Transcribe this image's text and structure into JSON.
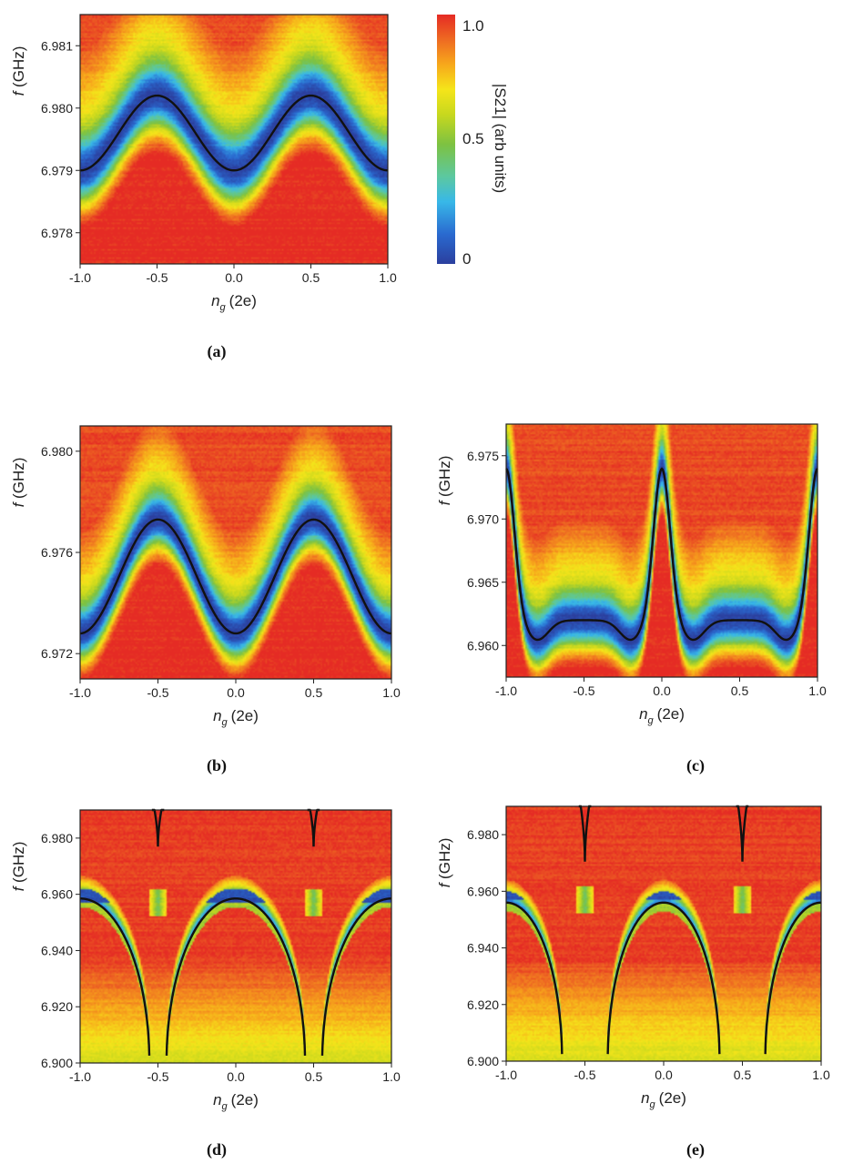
{
  "figure": {
    "colorbar": {
      "label": "|S21| (arb units)",
      "ticks": [
        "1.0",
        "0.5",
        "0"
      ],
      "tick_values": [
        1.0,
        0.5,
        0.0
      ],
      "colors": [
        "#2b3f9e",
        "#2a6ad0",
        "#38b8e8",
        "#5cc8a0",
        "#7dc241",
        "#c8d81e",
        "#f5e51a",
        "#f7a81b",
        "#ee6a22",
        "#e52b24"
      ]
    }
  },
  "chart_data": [
    {
      "id": "a",
      "type": "heatmap",
      "caption": "(a)",
      "xlabel_var": "n",
      "xlabel_sub": "g",
      "xlabel_unit": "(2e)",
      "ylabel_var": "f",
      "ylabel_unit": "(GHz)",
      "xlim": [
        -1.0,
        1.0
      ],
      "ylim": [
        6.9775,
        6.9815
      ],
      "xticks": [
        -1.0,
        -0.5,
        0.0,
        0.5,
        1.0
      ],
      "xtick_labels": [
        "-1.0",
        "-0.5",
        "0.0",
        "0.5",
        "1.0"
      ],
      "yticks": [
        6.978,
        6.979,
        6.98,
        6.981
      ],
      "ytick_labels": [
        "6.978",
        "6.979",
        "6.980",
        "6.981"
      ],
      "curve": {
        "kind": "cosine",
        "f_min": 6.979,
        "f_max": 6.9802
      },
      "resonance_width": 0.00045
    },
    {
      "id": "b",
      "type": "heatmap",
      "caption": "(b)",
      "xlabel_var": "n",
      "xlabel_sub": "g",
      "xlabel_unit": "(2e)",
      "ylabel_var": "f",
      "ylabel_unit": "(GHz)",
      "xlim": [
        -1.0,
        1.0
      ],
      "ylim": [
        6.971,
        6.981
      ],
      "xticks": [
        -1.0,
        -0.5,
        0.0,
        0.5,
        1.0
      ],
      "xtick_labels": [
        "-1.0",
        "-0.5",
        "0.0",
        "0.5",
        "1.0"
      ],
      "yticks": [
        6.972,
        6.976,
        6.98
      ],
      "ytick_labels": [
        "6.972",
        "6.976",
        "6.980"
      ],
      "curve": {
        "kind": "cosine",
        "f_min": 6.9728,
        "f_max": 6.9773
      },
      "resonance_width": 0.0009
    },
    {
      "id": "c",
      "type": "heatmap",
      "caption": "(c)",
      "xlabel_var": "n",
      "xlabel_sub": "g",
      "xlabel_unit": "(2e)",
      "ylabel_var": "f",
      "ylabel_unit": "(GHz)",
      "xlim": [
        -1.0,
        1.0
      ],
      "ylim": [
        6.9575,
        6.9775
      ],
      "xticks": [
        -1.0,
        -0.5,
        0.0,
        0.5,
        1.0
      ],
      "xtick_labels": [
        "-1.0",
        "-0.5",
        "0.0",
        "0.5",
        "1.0"
      ],
      "yticks": [
        6.96,
        6.965,
        6.97,
        6.975
      ],
      "ytick_labels": [
        "6.960",
        "6.965",
        "6.970",
        "6.975"
      ],
      "curve": {
        "kind": "peaked",
        "base": 6.962,
        "dip": 1.3,
        "peak": 6.974
      },
      "resonance_width": 0.0018
    },
    {
      "id": "d",
      "type": "heatmap",
      "caption": "(d)",
      "xlabel_var": "n",
      "xlabel_sub": "g",
      "xlabel_unit": "(2e)",
      "ylabel_var": "f",
      "ylabel_unit": "(GHz)",
      "xlim": [
        -1.0,
        1.0
      ],
      "ylim": [
        6.9,
        6.99
      ],
      "xticks": [
        -1.0,
        -0.5,
        0.0,
        0.5,
        1.0
      ],
      "xtick_labels": [
        "-1.0",
        "-0.5",
        "0.0",
        "0.5",
        "1.0"
      ],
      "yticks": [
        6.9,
        6.92,
        6.94,
        6.96,
        6.98
      ],
      "ytick_labels": [
        "6.900",
        "6.920",
        "6.940",
        "6.960",
        "6.980"
      ],
      "curve": {
        "kind": "arches",
        "top": 6.9585,
        "bottom_x": 0.445,
        "upper_min": 6.977
      },
      "resonance_width": 0.006
    },
    {
      "id": "e",
      "type": "heatmap",
      "caption": "(e)",
      "xlabel_var": "n",
      "xlabel_sub": "g",
      "xlabel_unit": "(2e)",
      "ylabel_var": "f",
      "ylabel_unit": "(GHz)",
      "xlim": [
        -1.0,
        1.0
      ],
      "ylim": [
        6.9,
        6.99
      ],
      "xticks": [
        -1.0,
        -0.5,
        0.0,
        0.5,
        1.0
      ],
      "xtick_labels": [
        "-1.0",
        "-0.5",
        "0.0",
        "0.5",
        "1.0"
      ],
      "yticks": [
        6.9,
        6.92,
        6.94,
        6.96,
        6.98
      ],
      "ytick_labels": [
        "6.900",
        "6.920",
        "6.940",
        "6.960",
        "6.980"
      ],
      "curve": {
        "kind": "arches",
        "top": 6.956,
        "bottom_x": 0.355,
        "upper_min": 6.9705
      },
      "resonance_width": 0.006
    }
  ]
}
